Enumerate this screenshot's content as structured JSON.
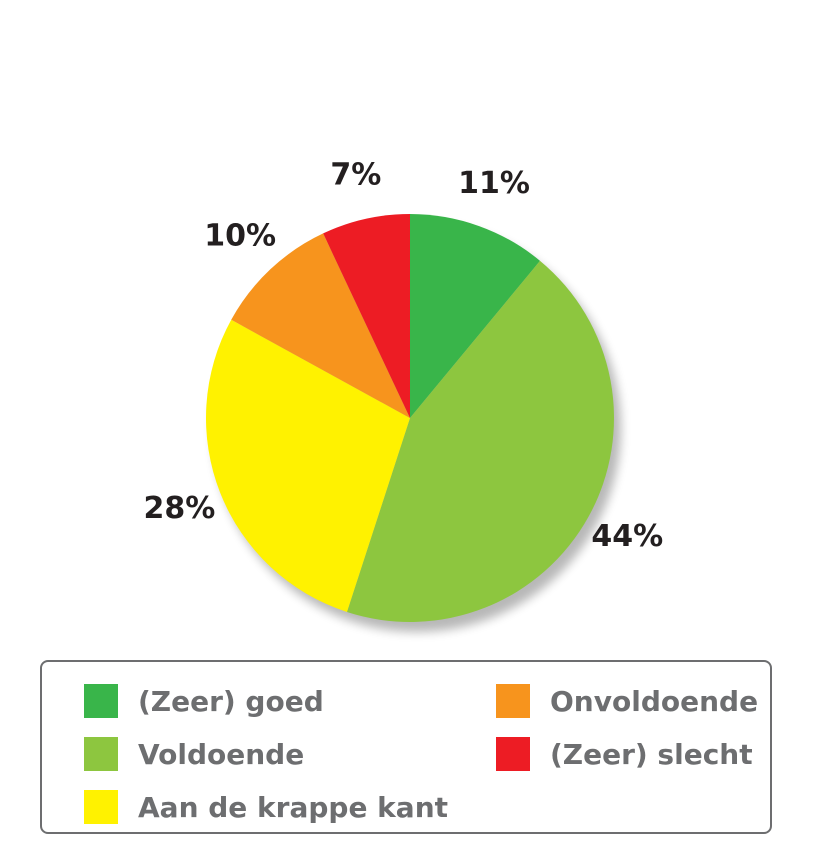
{
  "chart_data": {
    "type": "pie",
    "slices": [
      {
        "label": "(Zeer) goed",
        "value": 11,
        "value_label": "11%",
        "color": "#39b54a"
      },
      {
        "label": "Voldoende",
        "value": 44,
        "value_label": "44%",
        "color": "#8dc63f"
      },
      {
        "label": "Aan de krappe kant",
        "value": 28,
        "value_label": "28%",
        "color": "#fff200"
      },
      {
        "label": "Onvoldoende",
        "value": 10,
        "value_label": "10%",
        "color": "#f7941d"
      },
      {
        "label": "(Zeer) slecht",
        "value": 7,
        "value_label": "7%",
        "color": "#ed1c24"
      }
    ],
    "start": "top",
    "direction": "clockwise",
    "legend": {
      "position": "bottom",
      "items": [
        {
          "label": "(Zeer) goed",
          "color": "#39b54a"
        },
        {
          "label": "Onvoldoende",
          "color": "#f7941d"
        },
        {
          "label": "Voldoende",
          "color": "#8dc63f"
        },
        {
          "label": "(Zeer) slecht",
          "color": "#ed1c24"
        },
        {
          "label": "Aan de krappe kant",
          "color": "#fff200"
        }
      ]
    }
  }
}
